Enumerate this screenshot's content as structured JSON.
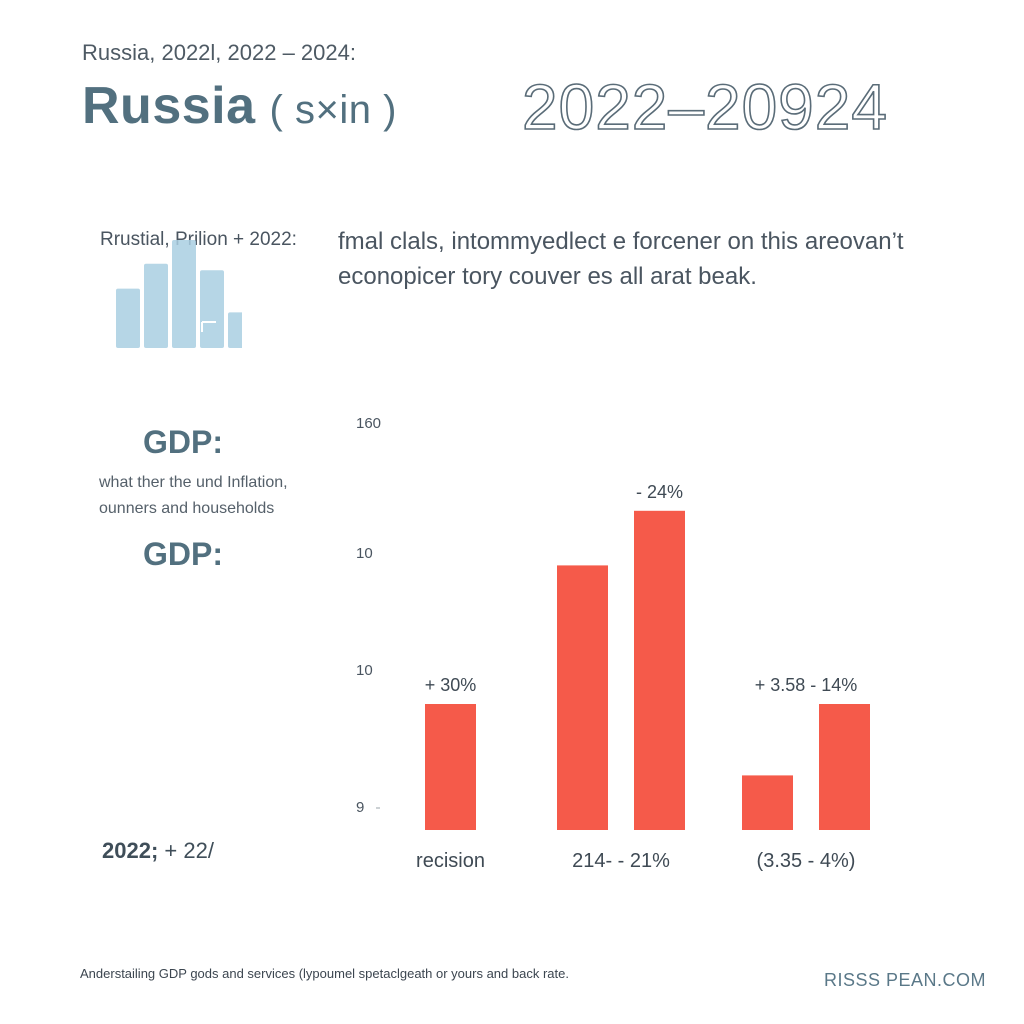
{
  "header": {
    "kicker": "Russia, 2022l, 2022 – 2024:",
    "title": "Russia",
    "title_paren": "( s×in )",
    "title_years": "2022–20924"
  },
  "mini": {
    "label": "Rrustial, Prilion + 2022:"
  },
  "description": "fmal clals, intommyedlect e forcener on this areovan’t econopicer tory couver es all arat beak.",
  "left": {
    "gdp_heading_1": "GDP:",
    "note": "what ther the und Inflation, ounners and households",
    "gdp_heading_2": "GDP:",
    "year_stat_bold": "2022;",
    "year_stat_rest": " + 22/"
  },
  "colors": {
    "bar": "#f55a4a",
    "mini_bar": "#a9cfe2",
    "axis_text": "#4a5560"
  },
  "chart_data": {
    "type": "bar",
    "title": "",
    "y_ticks": [
      "160",
      "10",
      "10",
      "9"
    ],
    "groups": [
      {
        "category": "recision",
        "values": [
          0.3
        ],
        "labels": [
          "+ 30%"
        ]
      },
      {
        "category": "214- - 21%",
        "values": [
          0.63,
          0.76
        ],
        "labels": [
          "",
          "- 24%"
        ]
      },
      {
        "category": "(3.35 - 4%)",
        "values": [
          0.13,
          0.3
        ],
        "labels": [
          "",
          "+ 3.58 - 14%"
        ]
      }
    ],
    "ylim": [
      0,
      1
    ]
  },
  "mini_chart_data": {
    "type": "bar",
    "values": [
      0.55,
      0.78,
      1.0,
      0.72,
      0.33
    ]
  },
  "footer": {
    "text": "Anderstailing GDP gods and services (lypoumel spetaclgeath or yours and back rate.",
    "brand": "RISSS PEAN.COM"
  }
}
